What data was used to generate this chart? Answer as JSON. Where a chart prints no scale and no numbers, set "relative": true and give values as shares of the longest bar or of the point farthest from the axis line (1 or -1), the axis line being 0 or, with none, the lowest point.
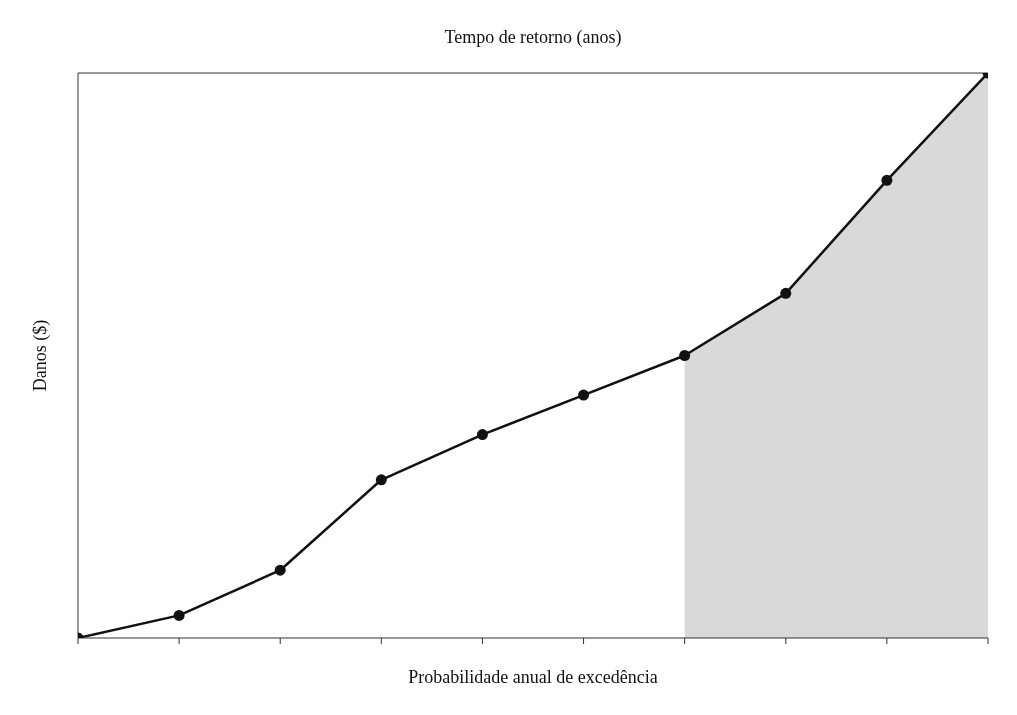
{
  "chart_data": {
    "type": "line",
    "relative": true,
    "xlabel": "Probabilidade anual de excedência",
    "x2label": "Tempo de retorno (anos)",
    "ylabel": "Danos ($)",
    "marker": "circle",
    "categories": [
      null,
      null,
      null,
      null,
      null,
      null,
      null,
      null,
      null,
      null
    ],
    "series": [
      {
        "type": "area",
        "marker": "none",
        "color": "#d9d9d9",
        "values": [
          null,
          null,
          null,
          null,
          null,
          null,
          0.5,
          0.61,
          0.81,
          1
        ]
      },
      {
        "color": "#111111",
        "values": [
          0,
          0.04,
          0.12,
          0.28,
          0.36,
          0.43,
          0.5,
          0.61,
          0.81,
          1
        ]
      }
    ]
  }
}
